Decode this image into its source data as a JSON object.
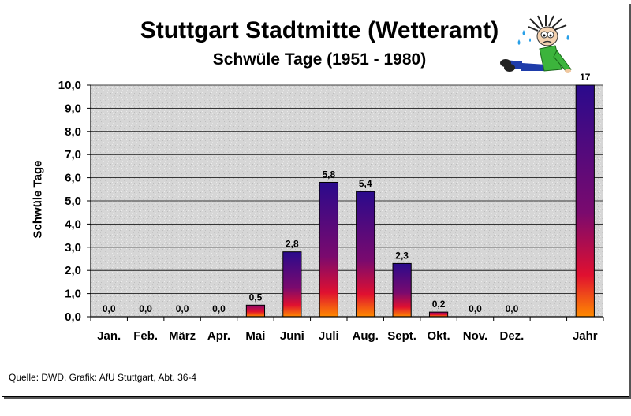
{
  "chart_data": {
    "type": "bar",
    "title": "Stuttgart Stadtmitte (Wetteramt)",
    "subtitle": "Schwüle Tage (1951 - 1980)",
    "xlabel": "",
    "ylabel": "Schwüle Tage",
    "ylim": [
      0,
      10
    ],
    "yticks": [
      "0,0",
      "1,0",
      "2,0",
      "3,0",
      "4,0",
      "5,0",
      "6,0",
      "7,0",
      "8,0",
      "9,0",
      "10,0"
    ],
    "categories": [
      "Jan.",
      "Feb.",
      "März",
      "Apr.",
      "Mai",
      "Juni",
      "Juli",
      "Aug.",
      "Sept.",
      "Okt.",
      "Nov.",
      "Dez.",
      "",
      "Jahr"
    ],
    "values": [
      0,
      0,
      0,
      0,
      0.5,
      2.8,
      5.8,
      5.4,
      2.3,
      0.2,
      0,
      0,
      null,
      17
    ],
    "data_labels": [
      "0,0",
      "0,0",
      "0,0",
      "0,0",
      "0,5",
      "2,8",
      "5,8",
      "5,4",
      "2,3",
      "0,2",
      "0,0",
      "0,0",
      "",
      "17"
    ],
    "grid": true,
    "legend": "none",
    "colors": {
      "bar_top": "#2a0a8c",
      "bar_mid": "#cc0d3c",
      "bar_bottom": "#ff7a00",
      "plot_bg": "#d9d9d9"
    }
  },
  "footer": {
    "source": "Quelle: DWD, Grafik: AfU Stuttgart, Abt. 36-4"
  },
  "decor": {
    "mascot_icon": "sweating-cartoon-man-icon"
  }
}
